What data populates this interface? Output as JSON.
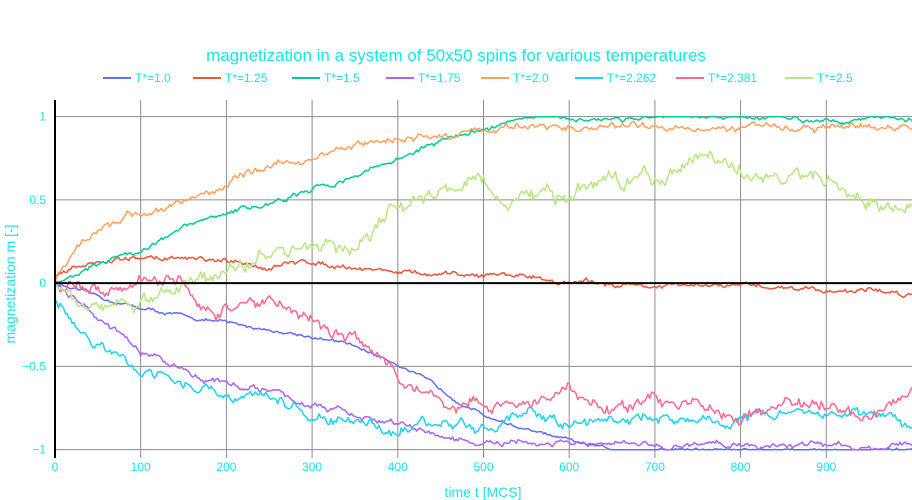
{
  "chart_data": {
    "type": "line",
    "title": "magnetization in a system of 50x50 spins for various temperatures",
    "xlabel": "time t [MCS]",
    "ylabel": "magnetization m [-]",
    "xlim": [
      0,
      1000
    ],
    "ylim": [
      -1.05,
      1.1
    ],
    "xticks": [
      0,
      100,
      200,
      300,
      400,
      500,
      600,
      700,
      800,
      900
    ],
    "yticks": [
      -1,
      -0.5,
      0,
      0.5,
      1
    ],
    "ytick_labels": [
      "−1",
      "−0.5",
      "0",
      "0.5",
      "1"
    ],
    "grid": true,
    "legend_position": "top",
    "text_color": "#17e6e6",
    "series": [
      {
        "name": "T*=1.0",
        "color": "#636efa",
        "x": [
          0,
          30,
          60,
          100,
          150,
          200,
          250,
          300,
          350,
          400,
          450,
          500,
          550,
          600,
          650,
          700,
          800,
          900,
          1000
        ],
        "y": [
          0.0,
          -0.05,
          -0.1,
          -0.15,
          -0.2,
          -0.24,
          -0.28,
          -0.32,
          -0.38,
          -0.48,
          -0.64,
          -0.79,
          -0.88,
          -0.95,
          -1.0,
          -1.0,
          -1.0,
          -1.0,
          -1.0
        ],
        "noise": 0.008
      },
      {
        "name": "T*=1.25",
        "color": "#ef553b",
        "x": [
          0,
          30,
          60,
          100,
          150,
          200,
          250,
          300,
          350,
          400,
          450,
          500,
          550,
          600,
          650,
          700,
          750,
          800,
          850,
          900,
          950,
          1000
        ],
        "y": [
          0.03,
          0.1,
          0.13,
          0.15,
          0.15,
          0.12,
          0.1,
          0.13,
          0.1,
          0.07,
          0.04,
          0.05,
          0.05,
          0.0,
          0.0,
          -0.02,
          -0.02,
          -0.02,
          -0.02,
          -0.04,
          -0.04,
          -0.07
        ],
        "noise": 0.012
      },
      {
        "name": "T*=1.5",
        "color": "#00cc96",
        "x": [
          0,
          50,
          100,
          150,
          200,
          250,
          300,
          350,
          400,
          450,
          500,
          540,
          600,
          700,
          800,
          900,
          1000
        ],
        "y": [
          0.0,
          0.13,
          0.2,
          0.33,
          0.42,
          0.48,
          0.55,
          0.65,
          0.75,
          0.85,
          0.93,
          0.99,
          0.99,
          0.99,
          0.99,
          0.99,
          0.99
        ],
        "noise": 0.012
      },
      {
        "name": "T*=1.75",
        "color": "#ab63fa",
        "x": [
          0,
          30,
          60,
          100,
          150,
          200,
          250,
          300,
          350,
          400,
          450,
          500,
          600,
          700,
          800,
          900,
          1000
        ],
        "y": [
          0.0,
          -0.12,
          -0.25,
          -0.42,
          -0.52,
          -0.6,
          -0.65,
          -0.73,
          -0.8,
          -0.85,
          -0.92,
          -0.97,
          -0.97,
          -0.98,
          -0.97,
          -0.97,
          -0.98
        ],
        "noise": 0.015
      },
      {
        "name": "T*=2.0",
        "color": "#ffa15a",
        "x": [
          0,
          30,
          60,
          100,
          150,
          200,
          250,
          300,
          350,
          400,
          450,
          500,
          550,
          600,
          650,
          700,
          750,
          800,
          850,
          900,
          950,
          1000
        ],
        "y": [
          0.0,
          0.25,
          0.36,
          0.42,
          0.48,
          0.6,
          0.7,
          0.75,
          0.82,
          0.87,
          0.88,
          0.93,
          0.94,
          0.93,
          0.94,
          0.93,
          0.95,
          0.93,
          0.94,
          0.93,
          0.94,
          0.93
        ],
        "noise": 0.018
      },
      {
        "name": "T*=2.262",
        "color": "#19d3f3",
        "x": [
          0,
          30,
          60,
          100,
          150,
          200,
          250,
          300,
          350,
          400,
          450,
          500,
          550,
          600,
          650,
          700,
          750,
          800,
          850,
          900,
          950,
          1000
        ],
        "y": [
          -0.1,
          -0.3,
          -0.42,
          -0.5,
          -0.6,
          -0.67,
          -0.7,
          -0.8,
          -0.84,
          -0.86,
          -0.85,
          -0.85,
          -0.82,
          -0.84,
          -0.82,
          -0.8,
          -0.84,
          -0.8,
          -0.78,
          -0.75,
          -0.8,
          -0.87
        ],
        "noise": 0.025
      },
      {
        "name": "T*=2.381",
        "color": "#ff6692",
        "x": [
          0,
          50,
          100,
          150,
          180,
          200,
          250,
          300,
          350,
          400,
          450,
          500,
          550,
          600,
          650,
          700,
          750,
          800,
          850,
          900,
          950,
          1000
        ],
        "y": [
          0.0,
          -0.05,
          0.05,
          0.0,
          -0.2,
          -0.17,
          -0.1,
          -0.22,
          -0.32,
          -0.55,
          -0.72,
          -0.73,
          -0.75,
          -0.65,
          -0.75,
          -0.72,
          -0.72,
          -0.8,
          -0.75,
          -0.72,
          -0.77,
          -0.62
        ],
        "noise": 0.03
      },
      {
        "name": "T*=2.5",
        "color": "#b6e880",
        "x": [
          0,
          50,
          100,
          150,
          200,
          250,
          300,
          350,
          400,
          430,
          470,
          500,
          520,
          550,
          600,
          650,
          700,
          750,
          800,
          850,
          900,
          950,
          1000
        ],
        "y": [
          0.0,
          -0.1,
          -0.15,
          0.0,
          0.1,
          0.15,
          0.25,
          0.22,
          0.45,
          0.5,
          0.62,
          0.6,
          0.42,
          0.5,
          0.5,
          0.62,
          0.63,
          0.72,
          0.7,
          0.6,
          0.63,
          0.5,
          0.43
        ],
        "noise": 0.035
      }
    ]
  }
}
